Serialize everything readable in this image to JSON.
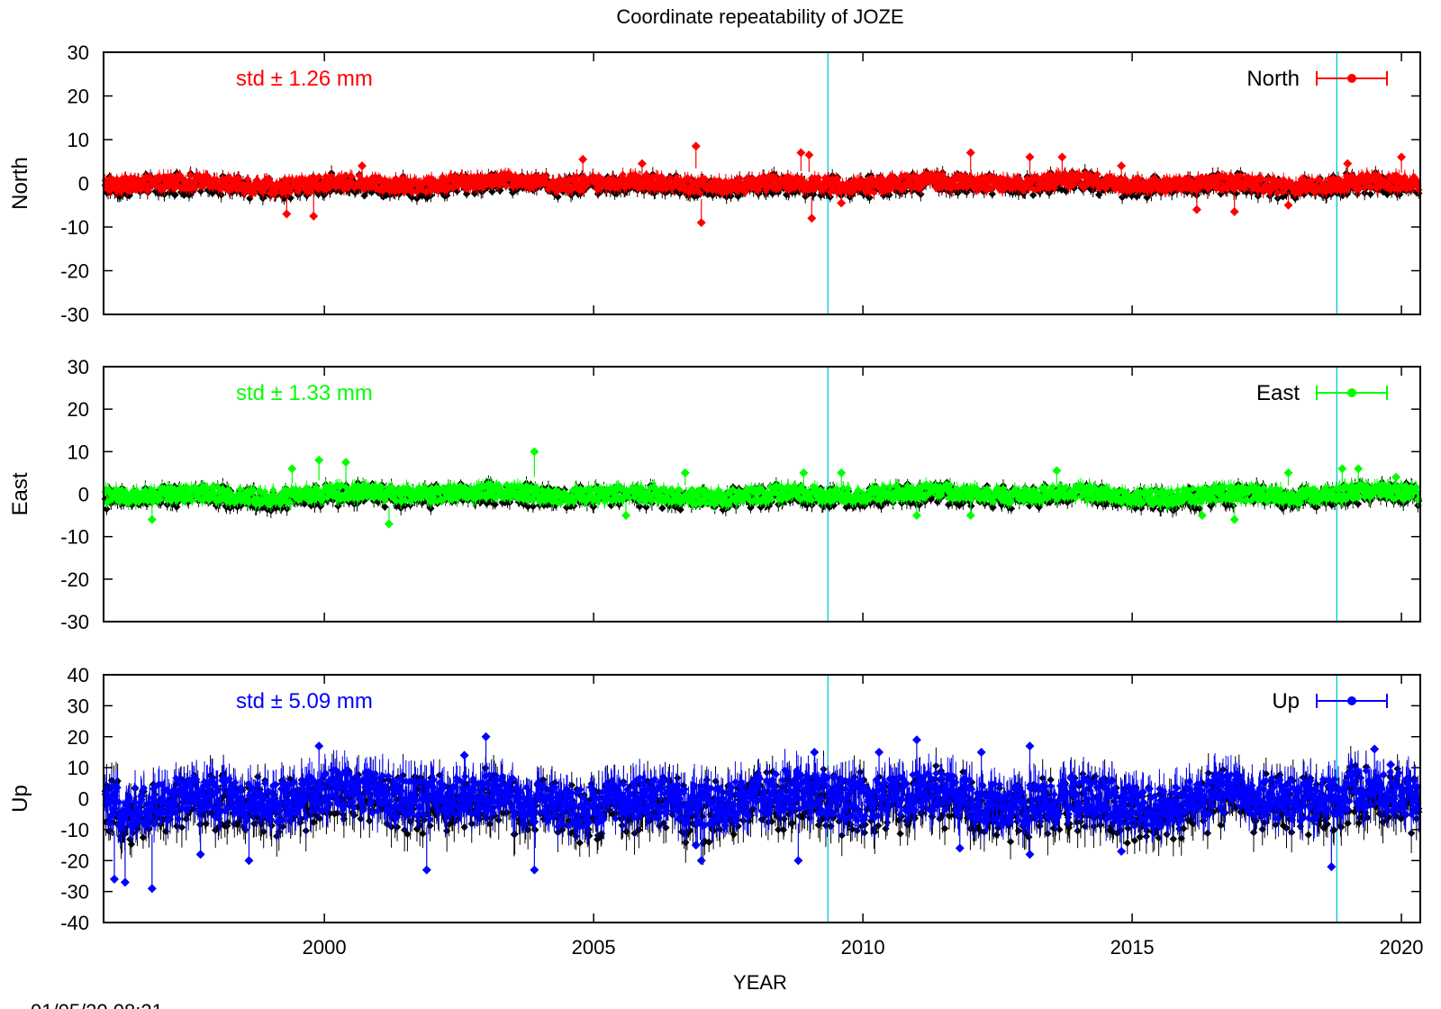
{
  "chart_data": {
    "type": "scatter",
    "title": "Coordinate repeatability of JOZE",
    "xlabel": "YEAR",
    "timestamp": "01/05/20 08:21",
    "xlim": [
      1995.9,
      2020.35
    ],
    "x_ticks": [
      2000,
      2005,
      2010,
      2015,
      2020
    ],
    "vlines": [
      2009.35,
      2018.8
    ],
    "vline_color": "#00c8d8",
    "residual_color": "#000000",
    "panels": [
      {
        "name": "North",
        "ylabel": "North",
        "ylim": [
          -30,
          30
        ],
        "yticks": [
          30,
          20,
          10,
          0,
          -10,
          -20,
          -30
        ],
        "color": "#ff0000",
        "std_text": "std ± 1.26 mm",
        "legend": "North",
        "amp": 1.26,
        "spikes": [
          [
            1999.3,
            -7
          ],
          [
            1999.8,
            -7.5
          ],
          [
            2000.7,
            4
          ],
          [
            2004.8,
            5.5
          ],
          [
            2005.9,
            4.5
          ],
          [
            2006.9,
            8.5
          ],
          [
            2007.0,
            -9
          ],
          [
            2008.85,
            7
          ],
          [
            2009.0,
            6.5
          ],
          [
            2009.05,
            -8
          ],
          [
            2009.6,
            -4.5
          ],
          [
            2012.0,
            7
          ],
          [
            2013.1,
            6
          ],
          [
            2013.7,
            6
          ],
          [
            2014.8,
            4
          ],
          [
            2016.2,
            -6
          ],
          [
            2016.9,
            -6.5
          ],
          [
            2017.9,
            -5
          ],
          [
            2019.0,
            4.5
          ],
          [
            2020.0,
            6
          ]
        ]
      },
      {
        "name": "East",
        "ylabel": "East",
        "ylim": [
          -30,
          30
        ],
        "yticks": [
          30,
          20,
          10,
          0,
          -10,
          -20,
          -30
        ],
        "color": "#00ff00",
        "std_text": "std ± 1.33 mm",
        "legend": "East",
        "amp": 1.33,
        "spikes": [
          [
            1996.8,
            -6
          ],
          [
            1999.4,
            6
          ],
          [
            1999.9,
            8
          ],
          [
            2000.4,
            7.5
          ],
          [
            2001.2,
            -7
          ],
          [
            2003.9,
            10
          ],
          [
            2005.6,
            -5
          ],
          [
            2006.7,
            5
          ],
          [
            2008.9,
            5
          ],
          [
            2009.6,
            5
          ],
          [
            2011.0,
            -5
          ],
          [
            2012.0,
            -5
          ],
          [
            2013.6,
            5.5
          ],
          [
            2016.3,
            -5
          ],
          [
            2016.9,
            -6
          ],
          [
            2017.9,
            5
          ],
          [
            2018.9,
            6
          ],
          [
            2019.2,
            6
          ],
          [
            2019.9,
            4
          ]
        ]
      },
      {
        "name": "Up",
        "ylabel": "Up",
        "ylim": [
          -40,
          40
        ],
        "yticks": [
          40,
          30,
          20,
          10,
          0,
          -10,
          -20,
          -30,
          -40
        ],
        "color": "#0000ff",
        "std_text": "std ± 5.09 mm",
        "legend": "Up",
        "amp": 5.09,
        "spikes": [
          [
            1996.1,
            -26
          ],
          [
            1996.3,
            -27
          ],
          [
            1996.8,
            -29
          ],
          [
            1997.7,
            -18
          ],
          [
            1998.6,
            -20
          ],
          [
            1999.9,
            17
          ],
          [
            2001.9,
            -23
          ],
          [
            2002.6,
            14
          ],
          [
            2003.0,
            20
          ],
          [
            2003.9,
            -23
          ],
          [
            2006.9,
            -15
          ],
          [
            2007.0,
            -20
          ],
          [
            2008.8,
            -20
          ],
          [
            2009.1,
            15
          ],
          [
            2010.3,
            15
          ],
          [
            2011.0,
            19
          ],
          [
            2011.8,
            -16
          ],
          [
            2012.2,
            15
          ],
          [
            2013.1,
            17
          ],
          [
            2013.1,
            -18
          ],
          [
            2014.8,
            -17
          ],
          [
            2018.7,
            -22
          ],
          [
            2019.5,
            16
          ],
          [
            2019.8,
            11
          ]
        ]
      }
    ]
  }
}
